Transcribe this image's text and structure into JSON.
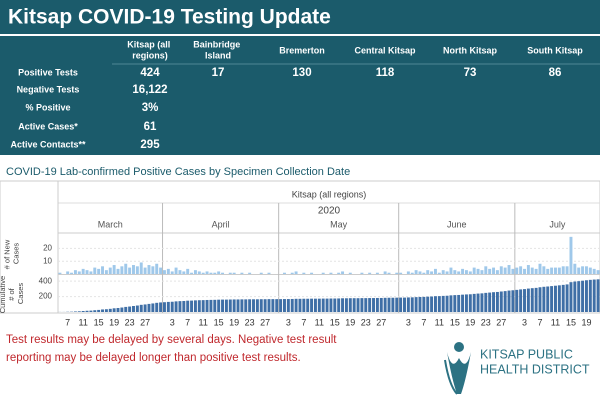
{
  "header": {
    "title": "Kitsap COVID-19 Testing Update"
  },
  "table": {
    "columns": [
      "Kitsap (all regions)",
      "Bainbridge Island",
      "Bremerton",
      "Central Kitsap",
      "North Kitsap",
      "South Kitsap"
    ],
    "rows": [
      [
        "Positive Tests",
        424,
        17,
        130,
        118,
        73,
        86
      ],
      [
        "Negative Tests",
        "16,122"
      ],
      [
        "% Positive",
        "3%"
      ],
      [
        "Active Cases*",
        61
      ],
      [
        "Active Contacts**",
        295
      ]
    ]
  },
  "section_title": "COVID-19 Lab-confirmed Positive Cases by Specimen Collection Date",
  "panel_title": "Kitsap (all regions)",
  "year": "2020",
  "months": [
    "March",
    "April",
    "May",
    "June",
    "July"
  ],
  "chart_data": [
    {
      "type": "bar",
      "y_label": "# of New Cases",
      "color": "#9fc8ea",
      "ylim": [
        0,
        32
      ],
      "yticks": [
        10,
        20
      ],
      "grid": true,
      "categories": [
        null,
        null,
        "7",
        null,
        null,
        null,
        "11",
        null,
        null,
        null,
        "15",
        null,
        null,
        null,
        "19",
        null,
        null,
        null,
        "23",
        null,
        null,
        null,
        "27",
        null,
        null,
        null,
        null,
        null,
        null,
        "3",
        null,
        null,
        null,
        "7",
        null,
        null,
        null,
        "11",
        null,
        null,
        null,
        "15",
        null,
        null,
        null,
        "19",
        null,
        null,
        null,
        "23",
        null,
        null,
        null,
        "27",
        null,
        null,
        null,
        null,
        null,
        "3",
        null,
        null,
        null,
        "7",
        null,
        null,
        null,
        "11",
        null,
        null,
        null,
        "15",
        null,
        null,
        null,
        "19",
        null,
        null,
        null,
        "23",
        null,
        null,
        null,
        "27",
        null,
        null,
        null,
        null,
        null,
        null,
        "3",
        null,
        null,
        null,
        "7",
        null,
        null,
        null,
        "11",
        null,
        null,
        null,
        "15",
        null,
        null,
        null,
        "19",
        null,
        null,
        null,
        "23",
        null,
        null,
        null,
        "27",
        null,
        null,
        null,
        null,
        null,
        "3",
        null,
        null,
        null,
        "7",
        null,
        null,
        null,
        "11",
        null,
        null,
        null,
        "15",
        null,
        null,
        null,
        "19",
        null,
        null,
        null
      ],
      "values": [
        1,
        0,
        2,
        1,
        3,
        2,
        4,
        3,
        2,
        5,
        4,
        6,
        3,
        5,
        7,
        4,
        6,
        8,
        5,
        7,
        6,
        9,
        5,
        7,
        6,
        8,
        5,
        3,
        4,
        2,
        5,
        3,
        2,
        4,
        1,
        3,
        2,
        1,
        2,
        1,
        1,
        2,
        1,
        0,
        1,
        1,
        0,
        1,
        0,
        1,
        0,
        0,
        1,
        0,
        1,
        0,
        0,
        0,
        1,
        0,
        1,
        2,
        0,
        1,
        0,
        1,
        0,
        0,
        1,
        0,
        1,
        0,
        1,
        2,
        0,
        1,
        0,
        0,
        1,
        0,
        1,
        0,
        1,
        0,
        2,
        1,
        0,
        1,
        1,
        0,
        2,
        1,
        3,
        2,
        1,
        3,
        2,
        4,
        1,
        3,
        2,
        5,
        3,
        2,
        4,
        3,
        2,
        5,
        4,
        3,
        6,
        4,
        5,
        3,
        6,
        5,
        7,
        4,
        5,
        6,
        4,
        7,
        5,
        4,
        8,
        6,
        4,
        5,
        5,
        5,
        6,
        6,
        29,
        8,
        5,
        6,
        6,
        5,
        4,
        3
      ]
    },
    {
      "type": "bar",
      "y_label": "Cumulative # of Cases",
      "color": "#3f6fa6",
      "ylim": [
        0,
        480
      ],
      "yticks": [
        200,
        400
      ],
      "grid": true,
      "categories": [
        null,
        null,
        "7",
        null,
        null,
        null,
        "11",
        null,
        null,
        null,
        "15",
        null,
        null,
        null,
        "19",
        null,
        null,
        null,
        "23",
        null,
        null,
        null,
        "27",
        null,
        null,
        null,
        null,
        null,
        null,
        "3",
        null,
        null,
        null,
        "7",
        null,
        null,
        null,
        "11",
        null,
        null,
        null,
        "15",
        null,
        null,
        null,
        "19",
        null,
        null,
        null,
        "23",
        null,
        null,
        null,
        "27",
        null,
        null,
        null,
        null,
        null,
        "3",
        null,
        null,
        null,
        "7",
        null,
        null,
        null,
        "11",
        null,
        null,
        null,
        "15",
        null,
        null,
        null,
        "19",
        null,
        null,
        null,
        "23",
        null,
        null,
        null,
        "27",
        null,
        null,
        null,
        null,
        null,
        null,
        "3",
        null,
        null,
        null,
        "7",
        null,
        null,
        null,
        "11",
        null,
        null,
        null,
        "15",
        null,
        null,
        null,
        "19",
        null,
        null,
        null,
        "23",
        null,
        null,
        null,
        "27",
        null,
        null,
        null,
        null,
        null,
        "3",
        null,
        null,
        null,
        "7",
        null,
        null,
        null,
        "11",
        null,
        null,
        null,
        "15",
        null,
        null,
        null,
        "19",
        null,
        null,
        null
      ],
      "values": [
        1,
        1,
        3,
        4,
        7,
        9,
        13,
        16,
        18,
        23,
        27,
        33,
        36,
        41,
        48,
        52,
        58,
        66,
        71,
        78,
        84,
        93,
        98,
        105,
        111,
        119,
        124,
        127,
        131,
        133,
        138,
        141,
        143,
        147,
        148,
        151,
        153,
        154,
        156,
        157,
        158,
        160,
        161,
        161,
        162,
        163,
        163,
        164,
        164,
        165,
        165,
        165,
        166,
        166,
        167,
        167,
        167,
        167,
        168,
        168,
        169,
        171,
        171,
        172,
        172,
        173,
        173,
        173,
        174,
        174,
        175,
        175,
        176,
        178,
        178,
        179,
        179,
        179,
        180,
        180,
        181,
        181,
        182,
        182,
        184,
        185,
        185,
        186,
        187,
        187,
        189,
        190,
        193,
        195,
        196,
        199,
        201,
        205,
        206,
        209,
        211,
        216,
        219,
        221,
        225,
        228,
        230,
        235,
        239,
        242,
        248,
        252,
        257,
        260,
        266,
        271,
        278,
        282,
        287,
        293,
        297,
        304,
        309,
        313,
        321,
        327,
        331,
        336,
        341,
        346,
        352,
        358,
        387,
        395,
        400,
        406,
        412,
        417,
        421,
        424
      ]
    }
  ],
  "footnote": "Test results may be delayed by several days. Negative test result reporting may be delayed longer than positive test results.",
  "logo": [
    "KITSAP PUBLIC",
    "HEALTH DISTRICT"
  ]
}
